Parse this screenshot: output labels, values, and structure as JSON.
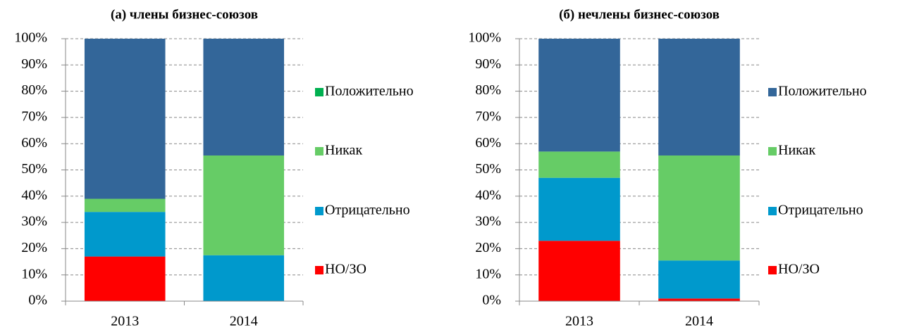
{
  "chart_data": [
    {
      "type": "stacked_bar",
      "title": "(а) члены бизнес-союзов",
      "categories": [
        "2013",
        "2014"
      ],
      "series": [
        {
          "name": "НО/ЗО",
          "color": "#ff0000",
          "values": [
            17,
            0
          ]
        },
        {
          "name": "Отрицательно",
          "color": "#0099cc",
          "values": [
            17,
            17.5
          ]
        },
        {
          "name": "Никак",
          "color": "#66cc66",
          "values": [
            5,
            38
          ]
        },
        {
          "name": "Положительно",
          "color": "#336699",
          "legend_color": "#00b050",
          "values": [
            61,
            44.5
          ]
        }
      ],
      "ylim": [
        0,
        100
      ],
      "yticks": [
        {
          "value": 0,
          "label": "0%"
        },
        {
          "value": 10,
          "label": "10%"
        },
        {
          "value": 20,
          "label": "20%"
        },
        {
          "value": 30,
          "label": "30%"
        },
        {
          "value": 40,
          "label": "40%"
        },
        {
          "value": 50,
          "label": "50%"
        },
        {
          "value": 60,
          "label": "60%"
        },
        {
          "value": 70,
          "label": "70%"
        },
        {
          "value": 80,
          "label": "80%"
        },
        {
          "value": 90,
          "label": "90%"
        },
        {
          "value": 100,
          "label": "100%"
        }
      ],
      "grid": true,
      "legend": "right"
    },
    {
      "type": "stacked_bar",
      "title": "(б) нечлены бизнес-союзов",
      "categories": [
        "2013",
        "2014"
      ],
      "series": [
        {
          "name": "НО/ЗО",
          "color": "#ff0000",
          "values": [
            23,
            1
          ]
        },
        {
          "name": "Отрицательно",
          "color": "#0099cc",
          "values": [
            24,
            14.5
          ]
        },
        {
          "name": "Никак",
          "color": "#66cc66",
          "values": [
            10,
            40
          ]
        },
        {
          "name": "Положительно",
          "color": "#336699",
          "values": [
            43,
            44.5
          ]
        }
      ],
      "ylim": [
        0,
        100
      ],
      "yticks": [
        {
          "value": 0,
          "label": "0%"
        },
        {
          "value": 10,
          "label": "10%"
        },
        {
          "value": 20,
          "label": "20%"
        },
        {
          "value": 30,
          "label": "30%"
        },
        {
          "value": 40,
          "label": "40%"
        },
        {
          "value": 50,
          "label": "50%"
        },
        {
          "value": 60,
          "label": "60%"
        },
        {
          "value": 70,
          "label": "70%"
        },
        {
          "value": 80,
          "label": "80%"
        },
        {
          "value": 90,
          "label": "90%"
        },
        {
          "value": 100,
          "label": "100%"
        }
      ],
      "grid": true,
      "legend": "right"
    }
  ]
}
